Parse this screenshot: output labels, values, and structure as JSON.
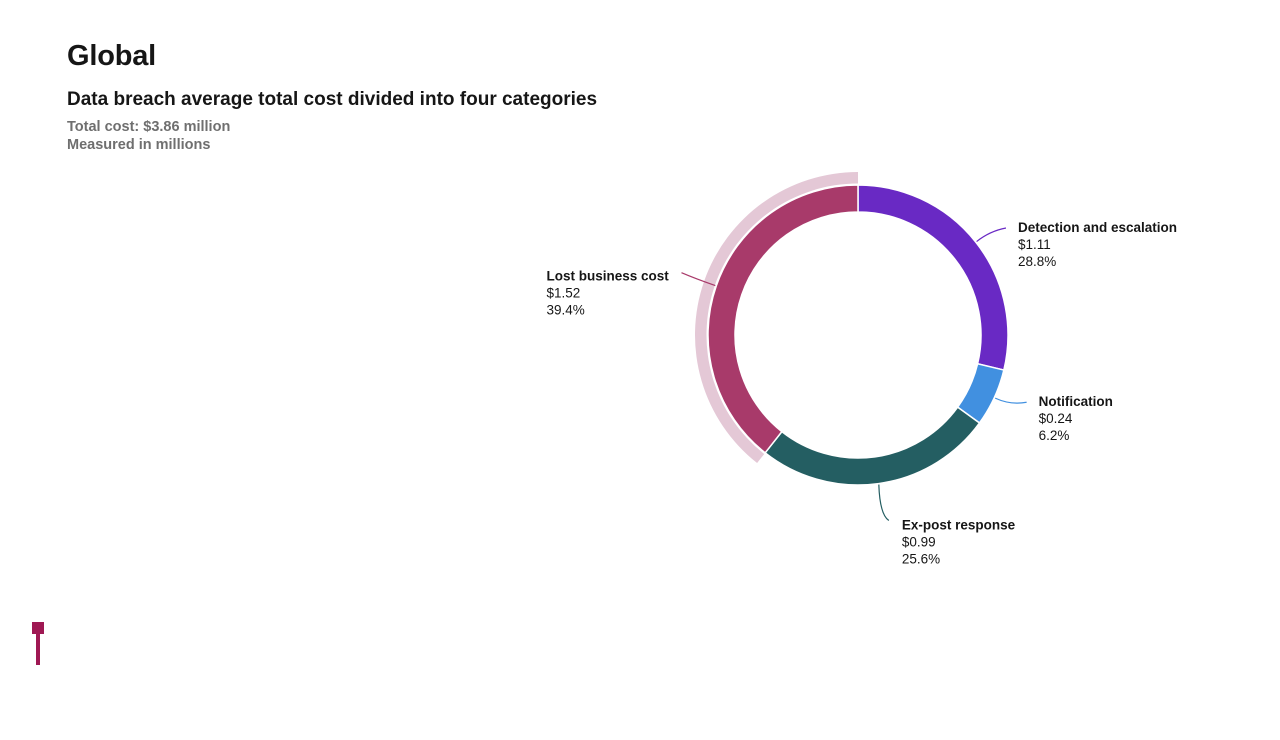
{
  "page": {
    "title": "Global"
  },
  "chart_data": {
    "type": "pie",
    "variant": "donut",
    "title": "Data breach average total cost divided into four categories",
    "subtitle_lines": [
      "Total cost: $3.86 million",
      "Measured in millions"
    ],
    "total": 3.86,
    "unit": "millions of USD",
    "highlighted_slice": "Lost business cost",
    "slices": [
      {
        "name": "Detection and escalation",
        "value": 1.11,
        "value_label": "$1.11",
        "percent": 28.8,
        "percent_label": "28.8%",
        "color": "#6929c4",
        "label_side": "right"
      },
      {
        "name": "Notification",
        "value": 0.24,
        "value_label": "$0.24",
        "percent": 6.2,
        "percent_label": "6.2%",
        "color": "#4190e0",
        "label_side": "right"
      },
      {
        "name": "Ex-post response",
        "value": 0.99,
        "value_label": "$0.99",
        "percent": 25.6,
        "percent_label": "25.6%",
        "color": "#245e62",
        "label_side": "bottom"
      },
      {
        "name": "Lost business cost",
        "value": 1.52,
        "value_label": "$1.52",
        "percent": 39.4,
        "percent_label": "39.4%",
        "color": "#a83a6a",
        "highlight_color": "#e4c8d6",
        "label_side": "left"
      }
    ]
  },
  "decor": {
    "marker_color": "#9f1853"
  }
}
